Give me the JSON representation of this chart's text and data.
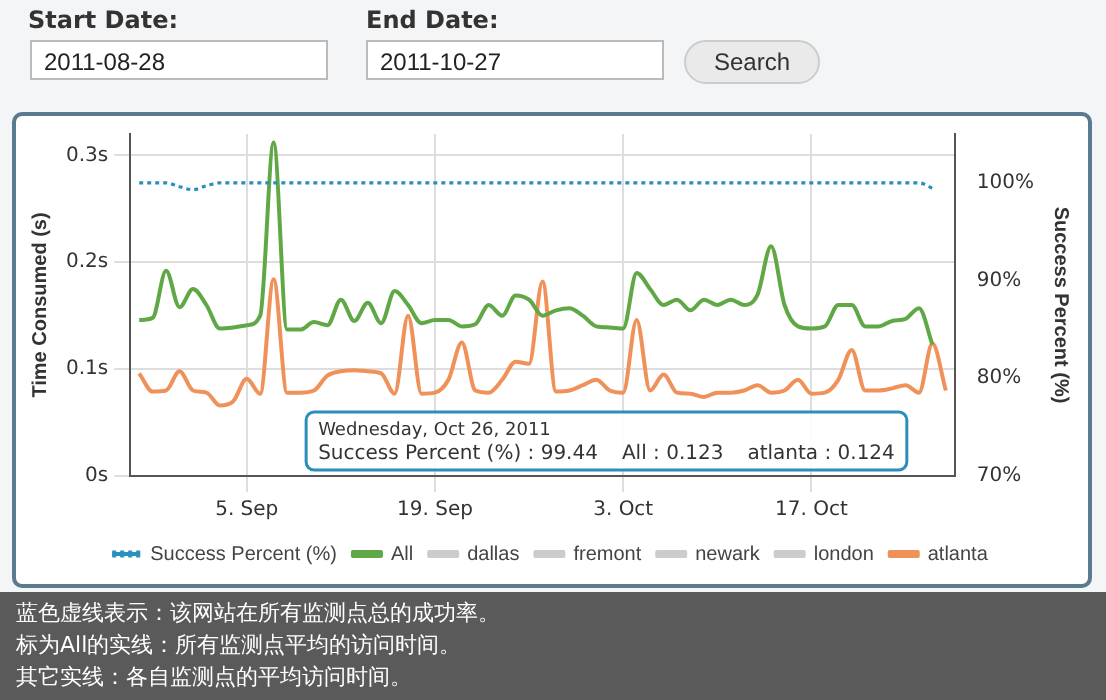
{
  "chart_data": {
    "type": "line",
    "x": [
      "2011-08-28",
      "2011-08-29",
      "2011-08-30",
      "2011-08-31",
      "2011-09-01",
      "2011-09-02",
      "2011-09-03",
      "2011-09-04",
      "2011-09-05",
      "2011-09-06",
      "2011-09-07",
      "2011-09-08",
      "2011-09-09",
      "2011-09-10",
      "2011-09-11",
      "2011-09-12",
      "2011-09-13",
      "2011-09-14",
      "2011-09-15",
      "2011-09-16",
      "2011-09-17",
      "2011-09-18",
      "2011-09-19",
      "2011-09-20",
      "2011-09-21",
      "2011-09-22",
      "2011-09-23",
      "2011-09-24",
      "2011-09-25",
      "2011-09-26",
      "2011-09-27",
      "2011-09-28",
      "2011-09-29",
      "2011-09-30",
      "2011-10-01",
      "2011-10-02",
      "2011-10-03",
      "2011-10-04",
      "2011-10-05",
      "2011-10-06",
      "2011-10-07",
      "2011-10-08",
      "2011-10-09",
      "2011-10-10",
      "2011-10-11",
      "2011-10-12",
      "2011-10-13",
      "2011-10-14",
      "2011-10-15",
      "2011-10-16",
      "2011-10-17",
      "2011-10-18",
      "2011-10-19",
      "2011-10-20",
      "2011-10-21",
      "2011-10-22",
      "2011-10-23",
      "2011-10-24",
      "2011-10-25",
      "2011-10-26",
      "2011-10-27"
    ],
    "series": [
      {
        "name": "Success Percent (%)",
        "color": "#2a8fbd",
        "axis": "y2",
        "line_style": "dotted",
        "values": [
          100,
          100,
          100,
          99.6,
          99.3,
          99.7,
          100,
          100,
          100,
          100,
          100,
          100,
          100,
          100,
          100,
          100,
          100,
          100,
          100,
          100,
          100,
          100,
          100,
          100,
          100,
          100,
          100,
          100,
          100,
          100,
          100,
          100,
          100,
          100,
          100,
          100,
          100,
          100,
          100,
          100,
          100,
          100,
          100,
          100,
          100,
          100,
          100,
          100,
          100,
          100,
          100,
          100,
          100,
          100,
          100,
          100,
          100,
          100,
          100,
          99.44,
          null
        ]
      },
      {
        "name": "All",
        "color": "#5fa845",
        "values": [
          0.146,
          0.148,
          0.192,
          0.158,
          0.175,
          0.16,
          0.138,
          0.139,
          0.141,
          0.15,
          0.312,
          0.137,
          0.137,
          0.144,
          0.141,
          0.165,
          0.145,
          0.162,
          0.143,
          0.173,
          0.16,
          0.143,
          0.146,
          0.146,
          0.14,
          0.142,
          0.16,
          0.15,
          0.169,
          0.165,
          0.15,
          0.155,
          0.157,
          0.15,
          0.14,
          0.139,
          0.138,
          0.19,
          0.175,
          0.16,
          0.165,
          0.155,
          0.165,
          0.16,
          0.165,
          0.16,
          0.17,
          0.215,
          0.16,
          0.14,
          0.138,
          0.14,
          0.16,
          0.16,
          0.14,
          0.14,
          0.145,
          0.147,
          0.157,
          0.123,
          null
        ]
      },
      {
        "name": "dallas",
        "color": "#cccccc",
        "values": [
          null,
          null,
          null,
          null,
          null,
          null,
          null,
          null,
          null,
          null,
          null,
          null,
          null,
          null,
          null,
          null,
          null,
          null,
          null,
          null,
          null,
          null,
          null,
          null,
          null,
          null,
          null,
          null,
          null,
          null,
          null,
          null,
          null,
          null,
          null,
          null,
          null,
          null,
          null,
          null,
          null,
          null,
          null,
          null,
          null,
          null,
          null,
          null,
          null,
          null,
          null,
          null,
          null,
          null,
          null,
          null,
          null,
          null,
          null,
          null,
          null
        ]
      },
      {
        "name": "fremont",
        "color": "#cccccc",
        "values": [
          null,
          null,
          null,
          null,
          null,
          null,
          null,
          null,
          null,
          null,
          null,
          null,
          null,
          null,
          null,
          null,
          null,
          null,
          null,
          null,
          null,
          null,
          null,
          null,
          null,
          null,
          null,
          null,
          null,
          null,
          null,
          null,
          null,
          null,
          null,
          null,
          null,
          null,
          null,
          null,
          null,
          null,
          null,
          null,
          null,
          null,
          null,
          null,
          null,
          null,
          null,
          null,
          null,
          null,
          null,
          null,
          null,
          null,
          null,
          null,
          null
        ]
      },
      {
        "name": "newark",
        "color": "#cccccc",
        "values": [
          null,
          null,
          null,
          null,
          null,
          null,
          null,
          null,
          null,
          null,
          null,
          null,
          null,
          null,
          null,
          null,
          null,
          null,
          null,
          null,
          null,
          null,
          null,
          null,
          null,
          null,
          null,
          null,
          null,
          null,
          null,
          null,
          null,
          null,
          null,
          null,
          null,
          null,
          null,
          null,
          null,
          null,
          null,
          null,
          null,
          null,
          null,
          null,
          null,
          null,
          null,
          null,
          null,
          null,
          null,
          null,
          null,
          null,
          null,
          null,
          null
        ]
      },
      {
        "name": "london",
        "color": "#cccccc",
        "values": [
          null,
          null,
          null,
          null,
          null,
          null,
          null,
          null,
          null,
          null,
          null,
          null,
          null,
          null,
          null,
          null,
          null,
          null,
          null,
          null,
          null,
          null,
          null,
          null,
          null,
          null,
          null,
          null,
          null,
          null,
          null,
          null,
          null,
          null,
          null,
          null,
          null,
          null,
          null,
          null,
          null,
          null,
          null,
          null,
          null,
          null,
          null,
          null,
          null,
          null,
          null,
          null,
          null,
          null,
          null,
          null,
          null,
          null,
          null,
          null,
          null
        ]
      },
      {
        "name": "atlanta",
        "color": "#f0915a",
        "values": [
          0.096,
          0.079,
          0.08,
          0.098,
          0.08,
          0.078,
          0.066,
          0.07,
          0.091,
          0.077,
          0.184,
          0.078,
          0.078,
          0.08,
          0.094,
          0.098,
          0.099,
          0.098,
          0.096,
          0.077,
          0.15,
          0.077,
          0.078,
          0.09,
          0.125,
          0.08,
          0.078,
          0.09,
          0.107,
          0.105,
          0.182,
          0.079,
          0.08,
          0.085,
          0.09,
          0.08,
          0.078,
          0.146,
          0.08,
          0.095,
          0.078,
          0.077,
          0.074,
          0.078,
          0.078,
          0.08,
          0.085,
          0.078,
          0.08,
          0.09,
          0.077,
          0.078,
          0.09,
          0.118,
          0.08,
          0.08,
          0.082,
          0.085,
          0.078,
          0.124,
          0.08
        ]
      }
    ],
    "xlim": [
      "2011-08-27T08:00",
      "2011-10-27T16:00"
    ],
    "xticks": [
      {
        "value": "2011-09-05",
        "label": "5. Sep"
      },
      {
        "value": "2011-09-19",
        "label": "19. Sep"
      },
      {
        "value": "2011-10-03",
        "label": "3. Oct"
      },
      {
        "value": "2011-10-17",
        "label": "17. Oct"
      }
    ],
    "ylim": [
      0,
      0.32
    ],
    "yticks": [
      {
        "value": 0,
        "label": "0s"
      },
      {
        "value": 0.1,
        "label": "0.1s"
      },
      {
        "value": 0.2,
        "label": "0.2s"
      },
      {
        "value": 0.3,
        "label": "0.3s"
      }
    ],
    "y2lim": [
      70,
      105
    ],
    "y2ticks": [
      {
        "value": 70,
        "label": "70%"
      },
      {
        "value": 80,
        "label": "80%"
      },
      {
        "value": 90,
        "label": "90%"
      },
      {
        "value": 100,
        "label": "100%"
      }
    ],
    "ylabel": "Time Consumed (s)",
    "y2label": "Success Percent (%)",
    "grid": true,
    "legend": "bottom",
    "marker": "none",
    "line_style": "solid",
    "annotations": [
      "Wednesday, Oct 26, 2011",
      "Success Percent (%) : 99.44",
      "All : 0.123",
      "atlanta : 0.124",
      "Start Date:",
      "End Date:",
      "2011-08-28",
      "2011-10-27",
      "Search",
      "蓝色虚线表示：该网站在所有监测点总的成功率。",
      "标为All的实线：所有监测点平均的访问时间。",
      "其它实线：各自监测点的平均访问时间。"
    ]
  }
}
